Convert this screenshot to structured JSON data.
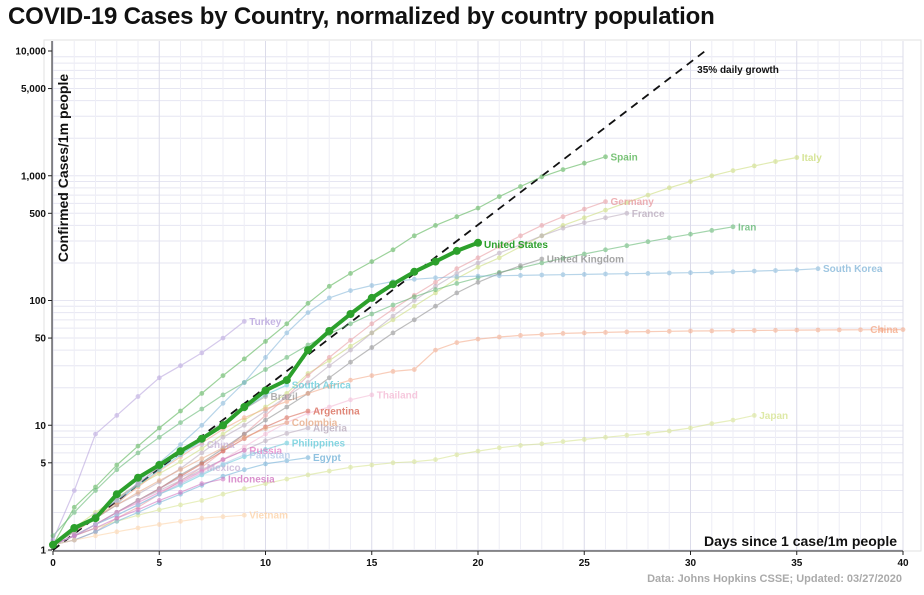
{
  "header": {
    "title": "COVID-19 Cases by Country, normalized by country population"
  },
  "footer": {
    "credit": "Data: Johns Hopkins CSSE; Updated: 03/27/2020"
  },
  "chart_data": {
    "type": "line",
    "title": "COVID-19 Cases by Country, normalized by country population",
    "xlabel": "Days since 1 case/1m people",
    "ylabel": "Confirmed Cases/1m people",
    "x_scale": "linear",
    "y_scale": "log",
    "xlim": [
      0,
      40
    ],
    "ylim": [
      1,
      10000
    ],
    "x_ticks": [
      0,
      5,
      10,
      15,
      20,
      25,
      30,
      35,
      40
    ],
    "y_ticks": [
      1,
      5,
      10,
      50,
      100,
      500,
      1000,
      5000,
      10000
    ],
    "y_tick_labels": [
      "1",
      "5",
      "10",
      "50",
      "100",
      "500",
      "1,000",
      "5,000",
      "10,000"
    ],
    "grid": true,
    "reference_line": {
      "label": "35% daily growth",
      "daily_growth": 0.35,
      "start": 1,
      "color": "#111111"
    },
    "series": [
      {
        "name": "Spain",
        "color": "#4daf4a",
        "highlight": false,
        "values": [
          1.1,
          2.2,
          3.2,
          4.8,
          6.8,
          9.5,
          13,
          18,
          25,
          34,
          47,
          65,
          95,
          130,
          165,
          205,
          255,
          330,
          400,
          470,
          550,
          680,
          820,
          980,
          1120,
          1260,
          1420
        ]
      },
      {
        "name": "Italy",
        "color": "#c9db74",
        "highlight": false,
        "values": [
          1.1,
          1.5,
          2,
          2.6,
          3.3,
          4.1,
          5.1,
          6.5,
          8.5,
          11,
          14,
          18,
          26,
          33,
          43,
          55,
          70,
          90,
          115,
          150,
          185,
          220,
          270,
          330,
          400,
          460,
          530,
          610,
          700,
          800,
          900,
          1000,
          1100,
          1200,
          1300,
          1400
        ]
      },
      {
        "name": "Germany",
        "color": "#e7969c",
        "highlight": false,
        "values": [
          1.1,
          1.2,
          1.4,
          1.8,
          2.2,
          2.8,
          3.6,
          4.6,
          6.2,
          8.5,
          12,
          17,
          25,
          35,
          48,
          65,
          85,
          110,
          140,
          180,
          220,
          270,
          330,
          400,
          470,
          540,
          620
        ]
      },
      {
        "name": "France",
        "color": "#b7a7b9",
        "highlight": false,
        "values": [
          1.1,
          1.4,
          1.8,
          2.3,
          2.8,
          3.5,
          4.5,
          6,
          8,
          10,
          13,
          17,
          22,
          30,
          40,
          55,
          75,
          100,
          130,
          165,
          200,
          240,
          280,
          330,
          380,
          420,
          460,
          500
        ]
      },
      {
        "name": "Iran",
        "color": "#59b36a",
        "highlight": false,
        "values": [
          1.3,
          2,
          3,
          4.4,
          6,
          8,
          10.5,
          13.5,
          17.5,
          22,
          28,
          35,
          44,
          54,
          65,
          78,
          92,
          107,
          122,
          137,
          152,
          168,
          183,
          200,
          218,
          236,
          255,
          275,
          296,
          318,
          340,
          365,
          390
        ]
      },
      {
        "name": "United Kingdom",
        "color": "#888888",
        "highlight": false,
        "values": [
          1.1,
          1.3,
          1.6,
          2,
          2.5,
          3.1,
          4,
          5,
          6.5,
          8.5,
          11,
          14,
          18,
          24,
          32,
          42,
          55,
          70,
          90,
          115,
          140,
          165,
          190,
          215
        ]
      },
      {
        "name": "United States",
        "color": "#2ca02c",
        "highlight": true,
        "values": [
          1.1,
          1.5,
          1.8,
          2.8,
          3.8,
          4.8,
          6.2,
          7.8,
          10,
          14,
          19,
          23,
          40,
          57,
          78,
          105,
          135,
          170,
          205,
          250,
          290
        ]
      },
      {
        "name": "South Korea",
        "color": "#7fb4d8",
        "highlight": false,
        "values": [
          1.1,
          1.4,
          1.8,
          2.3,
          3.5,
          5,
          7,
          10,
          15,
          22,
          35,
          55,
          80,
          105,
          120,
          132,
          142,
          148,
          152,
          155,
          157,
          158,
          159,
          160,
          161,
          162,
          163,
          164,
          165,
          166,
          167,
          168,
          170,
          172,
          174,
          176,
          180
        ]
      },
      {
        "name": "China",
        "color": "#f4a582",
        "highlight": false,
        "values": [
          1.1,
          1.4,
          1.8,
          2.4,
          3.2,
          4.3,
          5.6,
          7.2,
          9.3,
          11.5,
          13.5,
          15.5,
          18,
          20.5,
          23,
          25,
          27,
          28,
          40,
          46,
          49,
          51,
          52.5,
          53.5,
          54.5,
          55,
          55.5,
          56,
          56.3,
          56.6,
          56.9,
          57.1,
          57.3,
          57.5,
          57.7,
          57.9,
          58,
          58.1,
          58.2,
          58.3,
          58.4
        ]
      },
      {
        "name": "Japan",
        "color": "#d4e28a",
        "highlight": false,
        "values": [
          1.1,
          1.3,
          1.5,
          1.7,
          1.9,
          2.1,
          2.3,
          2.5,
          2.8,
          3.1,
          3.4,
          3.7,
          4,
          4.3,
          4.6,
          4.8,
          5,
          5.1,
          5.3,
          5.8,
          6.2,
          6.6,
          6.9,
          7.1,
          7.4,
          7.7,
          8,
          8.3,
          8.6,
          9,
          9.5,
          10.3,
          11,
          12
        ]
      },
      {
        "name": "Turkey",
        "color": "#b39ddb",
        "highlight": false,
        "values": [
          1.2,
          3,
          8.5,
          12,
          17,
          24,
          30,
          38,
          50,
          68
        ]
      },
      {
        "name": "South Africa",
        "color": "#5ec9d8",
        "highlight": false,
        "values": [
          1.1,
          1.4,
          1.9,
          2.5,
          3.3,
          4.4,
          5.8,
          7.5,
          10,
          13.5,
          17.5,
          21
        ]
      },
      {
        "name": "Brazil",
        "color": "#999999",
        "highlight": false,
        "values": [
          1.1,
          1.4,
          1.9,
          2.6,
          3.4,
          4.6,
          6,
          8,
          10.5,
          13.5,
          17
        ]
      },
      {
        "name": "Thailand",
        "color": "#f4b6d2",
        "highlight": false,
        "values": [
          1.1,
          1.3,
          1.6,
          1.9,
          2.3,
          2.8,
          3.4,
          4.2,
          5.3,
          6.7,
          8.5,
          10.5,
          12.5,
          14,
          16,
          17.5
        ]
      },
      {
        "name": "Argentina",
        "color": "#d6604d",
        "highlight": false,
        "values": [
          1.1,
          1.3,
          1.6,
          2,
          2.5,
          3.1,
          3.9,
          4.9,
          6.2,
          7.8,
          9.7,
          11.5,
          13
        ]
      },
      {
        "name": "Colombia",
        "color": "#e6a57e",
        "highlight": false,
        "values": [
          1.1,
          1.4,
          1.8,
          2.3,
          2.9,
          3.6,
          4.4,
          5.4,
          6.6,
          8,
          9.4,
          10.5
        ]
      },
      {
        "name": "Algeria",
        "color": "#b7a7b9",
        "highlight": false,
        "values": [
          1.1,
          1.3,
          1.6,
          2,
          2.5,
          3,
          3.6,
          4.4,
          5.3,
          6.3,
          7.5,
          8.6,
          9.5
        ]
      },
      {
        "name": "Philippines",
        "color": "#5ec9d8",
        "highlight": false,
        "values": [
          1.1,
          1.3,
          1.6,
          1.9,
          2.3,
          2.8,
          3.3,
          4,
          4.8,
          5.6,
          6.4,
          7.2
        ]
      },
      {
        "name": "Russia",
        "color": "#e377c2",
        "highlight": false,
        "values": [
          1.1,
          1.3,
          1.6,
          2,
          2.4,
          2.9,
          3.5,
          4.3,
          5.3,
          6.3
        ]
      },
      {
        "name": "China",
        "color": "#c5b0d5",
        "highlight": false,
        "values": [
          1.1,
          1.4,
          1.9,
          2.5,
          3.4,
          4.7,
          6.2,
          7
        ]
      },
      {
        "name": "Pakistan",
        "color": "#aec7e8",
        "highlight": false,
        "values": [
          1.1,
          1.3,
          1.6,
          1.9,
          2.3,
          2.8,
          3.4,
          4.1,
          4.9,
          5.8
        ]
      },
      {
        "name": "Egypt",
        "color": "#6baed6",
        "highlight": false,
        "values": [
          1.1,
          1.2,
          1.4,
          1.7,
          2,
          2.4,
          2.8,
          3.3,
          3.9,
          4.4,
          4.9,
          5.2,
          5.5
        ]
      },
      {
        "name": "Mexico",
        "color": "#c5b0d5",
        "highlight": false,
        "values": [
          1.1,
          1.3,
          1.6,
          2,
          2.5,
          3.1,
          3.8,
          4.6
        ]
      },
      {
        "name": "Indonesia",
        "color": "#ce6dbd",
        "highlight": false,
        "values": [
          1.1,
          1.3,
          1.5,
          1.8,
          2.1,
          2.5,
          2.9,
          3.4,
          3.7
        ]
      },
      {
        "name": "Vietnam",
        "color": "#fdd0a2",
        "highlight": false,
        "values": [
          1.1,
          1.2,
          1.3,
          1.4,
          1.5,
          1.6,
          1.7,
          1.8,
          1.85,
          1.9
        ]
      }
    ]
  }
}
